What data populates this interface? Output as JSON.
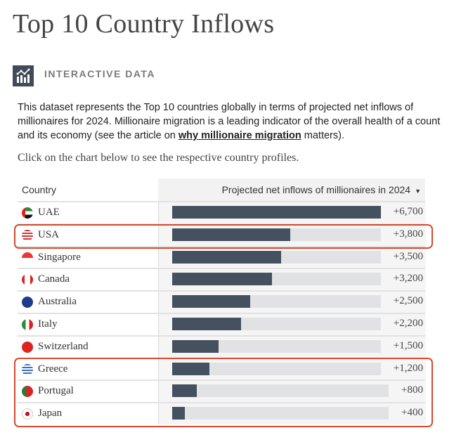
{
  "title": "Top 10 Country Inflows",
  "badge_label": "INTERACTIVE DATA",
  "description": {
    "part1": "This dataset represents the Top 10 countries globally in terms of projected net inflows of",
    "part2": "millionaires for 2024. Millionaire migration is a leading indicator of the overall health of a count",
    "part3": "and its economy (see the article on ",
    "link": "why millionaire migration",
    "part4": " matters)."
  },
  "hint": "Click on the chart below to see the respective country profiles.",
  "chart_data": {
    "type": "bar",
    "title": "Top 10 Country Inflows",
    "xlabel": "Country",
    "ylabel": "Projected net inflows of millionaires in 2024",
    "sort_indicator": "▼",
    "categories": [
      "UAE",
      "USA",
      "Singapore",
      "Canada",
      "Australia",
      "Italy",
      "Switzerland",
      "Greece",
      "Portugal",
      "Japan"
    ],
    "values": [
      6700,
      3800,
      3500,
      3200,
      2500,
      2200,
      1500,
      1200,
      800,
      400
    ],
    "labels": [
      "+6,700",
      "+3,800",
      "+3,500",
      "+3,200",
      "+2,500",
      "+2,200",
      "+1,500",
      "+1,200",
      "+800",
      "+400"
    ],
    "xlim": [
      0,
      6700
    ],
    "highlighted": [
      "USA",
      "Greece",
      "Portugal",
      "Japan"
    ]
  },
  "colors": {
    "bar": "#45515e",
    "track": "#e1e2e3",
    "highlight": "#d64a2e"
  }
}
